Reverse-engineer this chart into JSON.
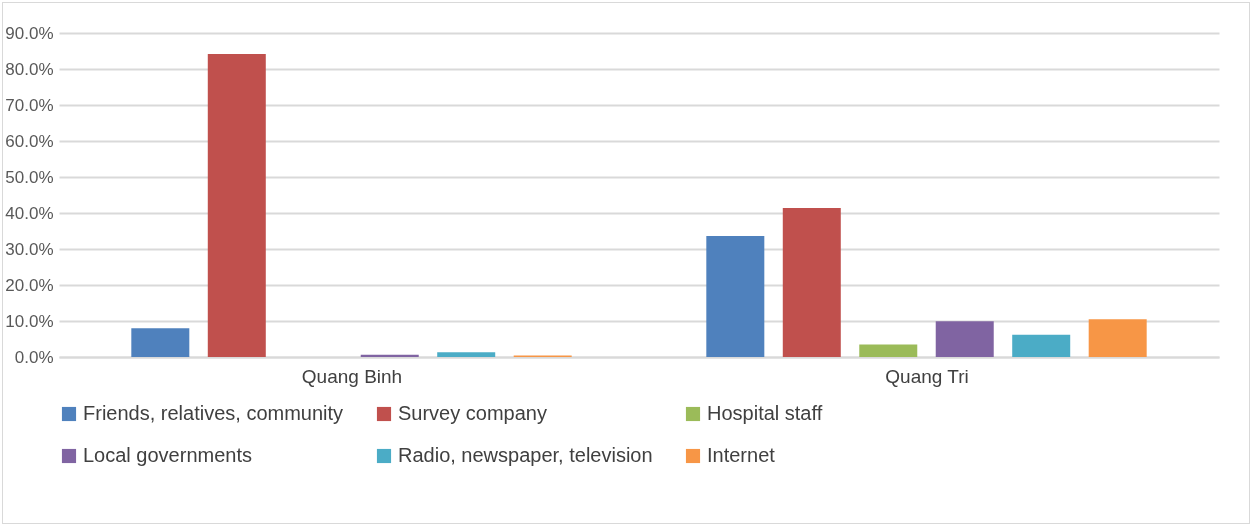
{
  "chart_data": {
    "type": "bar",
    "categories": [
      "Quang Binh",
      "Quang Tri"
    ],
    "series": [
      {
        "name": "Friends, relatives, community",
        "color": "#4f81bd",
        "values": [
          8.0,
          33.6
        ]
      },
      {
        "name": "Survey company",
        "color": "#c0504d",
        "values": [
          84.2,
          41.4
        ]
      },
      {
        "name": "Hospital staff",
        "color": "#9bbb59",
        "values": [
          0,
          3.5
        ]
      },
      {
        "name": "Local governments",
        "color": "#8064a2",
        "values": [
          0.6,
          9.9
        ]
      },
      {
        "name": "Radio, newspaper, television",
        "color": "#4bacc6",
        "values": [
          1.3,
          6.2
        ]
      },
      {
        "name": "Internet",
        "color": "#f79646",
        "values": [
          0.4,
          10.5
        ]
      }
    ],
    "ylim": [
      0,
      90
    ],
    "yticks": [
      {
        "value": 0,
        "label": "0.0%"
      },
      {
        "value": 10,
        "label": "10.0%"
      },
      {
        "value": 20,
        "label": "20.0%"
      },
      {
        "value": 30,
        "label": "30.0%"
      },
      {
        "value": 40,
        "label": "40.0%"
      },
      {
        "value": 50,
        "label": "50.0%"
      },
      {
        "value": 60,
        "label": "60.0%"
      },
      {
        "value": 70,
        "label": "70.0%"
      },
      {
        "value": 80,
        "label": "80.0%"
      },
      {
        "value": 90,
        "label": "90.0%"
      }
    ],
    "grid": "y",
    "legend": "bottom"
  }
}
